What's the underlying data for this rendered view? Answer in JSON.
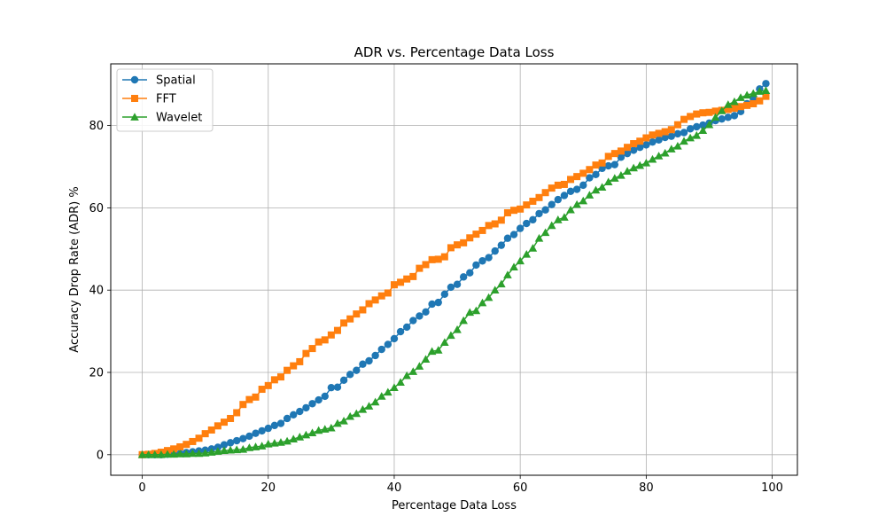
{
  "chart_data": {
    "type": "line",
    "title": "ADR vs. Percentage Data Loss",
    "xlabel": "Percentage Data Loss",
    "ylabel": "Accuracy Drop Rate (ADR) %",
    "xlim": [
      -5,
      104
    ],
    "ylim": [
      -5,
      95
    ],
    "xticks": [
      0,
      20,
      40,
      60,
      80,
      100
    ],
    "yticks": [
      0,
      20,
      40,
      60,
      80
    ],
    "xtick_labels": [
      "0",
      "20",
      "40",
      "60",
      "80",
      "100"
    ],
    "ytick_labels": [
      "0",
      "20",
      "40",
      "60",
      "80"
    ],
    "grid": true,
    "legend_position": "top-left",
    "series": [
      {
        "name": "Spatial",
        "color": "#1f77b4",
        "marker": "circle",
        "x": [
          0,
          1,
          2,
          3,
          4,
          5,
          6,
          7,
          8,
          9,
          10,
          11,
          12,
          13,
          14,
          15,
          16,
          17,
          18,
          19,
          20,
          21,
          22,
          23,
          24,
          25,
          26,
          27,
          28,
          29,
          30,
          31,
          32,
          33,
          34,
          35,
          36,
          37,
          38,
          39,
          40,
          41,
          42,
          43,
          44,
          45,
          46,
          47,
          48,
          49,
          50,
          51,
          52,
          53,
          54,
          55,
          56,
          57,
          58,
          59,
          60,
          61,
          62,
          63,
          64,
          65,
          66,
          67,
          68,
          69,
          70,
          71,
          72,
          73,
          74,
          75,
          76,
          77,
          78,
          79,
          80,
          81,
          82,
          83,
          84,
          85,
          86,
          87,
          88,
          89,
          90,
          91,
          92,
          93,
          94,
          95,
          96,
          97,
          98,
          99
        ],
        "y": [
          0,
          0,
          0,
          0,
          0.1,
          0.2,
          0.3,
          0.5,
          0.7,
          0.9,
          1.1,
          1.4,
          1.8,
          2.4,
          2.9,
          3.4,
          3.9,
          4.5,
          5.2,
          5.8,
          6.4,
          7.1,
          7.6,
          8.8,
          9.7,
          10.5,
          11.4,
          12.4,
          13.3,
          14.2,
          16.3,
          16.4,
          18.1,
          19.5,
          20.5,
          22.0,
          22.8,
          24.1,
          25.6,
          26.8,
          28.2,
          29.9,
          31.0,
          32.6,
          33.7,
          34.7,
          36.6,
          37.0,
          39.0,
          40.7,
          41.4,
          43.2,
          44.2,
          46.1,
          47.1,
          47.9,
          49.5,
          50.9,
          52.6,
          53.5,
          55.0,
          56.2,
          57.1,
          58.6,
          59.5,
          60.8,
          62.0,
          63.0,
          64.0,
          64.5,
          65.5,
          67.3,
          68.1,
          69.6,
          70.2,
          70.5,
          72.3,
          73.2,
          74.0,
          74.7,
          75.3,
          76.0,
          76.5,
          77.1,
          77.4,
          78.0,
          78.3,
          79.2,
          79.7,
          80.1,
          80.6,
          81.2,
          81.6,
          82.0,
          82.4,
          83.4,
          85.3,
          86.6,
          88.9,
          90.2
        ]
      },
      {
        "name": "FFT",
        "color": "#ff7f0e",
        "marker": "square",
        "x": [
          0,
          1,
          2,
          3,
          4,
          5,
          6,
          7,
          8,
          9,
          10,
          11,
          12,
          13,
          14,
          15,
          16,
          17,
          18,
          19,
          20,
          21,
          22,
          23,
          24,
          25,
          26,
          27,
          28,
          29,
          30,
          31,
          32,
          33,
          34,
          35,
          36,
          37,
          38,
          39,
          40,
          41,
          42,
          43,
          44,
          45,
          46,
          47,
          48,
          49,
          50,
          51,
          52,
          53,
          54,
          55,
          56,
          57,
          58,
          59,
          60,
          61,
          62,
          63,
          64,
          65,
          66,
          67,
          68,
          69,
          70,
          71,
          72,
          73,
          74,
          75,
          76,
          77,
          78,
          79,
          80,
          81,
          82,
          83,
          84,
          85,
          86,
          87,
          88,
          89,
          90,
          91,
          92,
          93,
          94,
          95,
          96,
          97,
          98,
          99
        ],
        "y": [
          0,
          0.1,
          0.3,
          0.6,
          1.0,
          1.4,
          1.9,
          2.5,
          3.2,
          4.0,
          5.1,
          6.0,
          7.0,
          7.9,
          8.8,
          10.2,
          12.2,
          13.4,
          14.0,
          15.9,
          16.8,
          18.2,
          18.9,
          20.5,
          21.6,
          22.6,
          24.6,
          25.8,
          27.4,
          27.9,
          29.1,
          30.2,
          32.0,
          33.0,
          34.2,
          35.2,
          36.7,
          37.6,
          38.6,
          39.3,
          41.3,
          41.9,
          42.7,
          43.3,
          45.3,
          46.2,
          47.4,
          47.5,
          48.1,
          50.3,
          51.0,
          51.5,
          52.7,
          53.6,
          54.5,
          55.7,
          56.1,
          57.0,
          58.8,
          59.4,
          59.7,
          60.7,
          61.6,
          62.5,
          63.7,
          64.8,
          65.5,
          65.7,
          66.9,
          67.6,
          68.4,
          69.3,
          70.4,
          70.9,
          72.5,
          73.2,
          73.8,
          74.7,
          75.6,
          76.2,
          77.0,
          77.7,
          78.1,
          78.5,
          79.0,
          80.2,
          81.5,
          82.2,
          82.8,
          83.1,
          83.2,
          83.5,
          83.7,
          83.9,
          84.2,
          84.6,
          84.9,
          85.3,
          86.0,
          87.1
        ]
      },
      {
        "name": "Wavelet",
        "color": "#2ca02c",
        "marker": "triangle",
        "x": [
          0,
          1,
          2,
          3,
          4,
          5,
          6,
          7,
          8,
          9,
          10,
          11,
          12,
          13,
          14,
          15,
          16,
          17,
          18,
          19,
          20,
          21,
          22,
          23,
          24,
          25,
          26,
          27,
          28,
          29,
          30,
          31,
          32,
          33,
          34,
          35,
          36,
          37,
          38,
          39,
          40,
          41,
          42,
          43,
          44,
          45,
          46,
          47,
          48,
          49,
          50,
          51,
          52,
          53,
          54,
          55,
          56,
          57,
          58,
          59,
          60,
          61,
          62,
          63,
          64,
          65,
          66,
          67,
          68,
          69,
          70,
          71,
          72,
          73,
          74,
          75,
          76,
          77,
          78,
          79,
          80,
          81,
          82,
          83,
          84,
          85,
          86,
          87,
          88,
          89,
          90,
          91,
          92,
          93,
          94,
          95,
          96,
          97,
          98,
          99
        ],
        "y": [
          0,
          0,
          0,
          0,
          0.1,
          0.1,
          0.2,
          0.2,
          0.3,
          0.3,
          0.4,
          0.6,
          0.8,
          1.0,
          1.1,
          1.2,
          1.3,
          1.7,
          1.9,
          2.1,
          2.6,
          2.8,
          3.0,
          3.3,
          3.8,
          4.3,
          4.8,
          5.3,
          5.9,
          6.2,
          6.5,
          7.6,
          8.2,
          9.3,
          10.0,
          11.0,
          11.8,
          12.8,
          14.2,
          15.2,
          16.3,
          17.6,
          19.2,
          20.2,
          21.5,
          23.2,
          25.1,
          25.4,
          27.3,
          29.0,
          30.4,
          32.6,
          34.6,
          35.0,
          36.9,
          38.2,
          40.0,
          41.5,
          43.7,
          45.6,
          47.1,
          48.7,
          50.2,
          52.6,
          54.0,
          55.7,
          57.1,
          57.7,
          59.5,
          60.8,
          61.7,
          63.1,
          64.3,
          65.0,
          66.3,
          67.2,
          67.9,
          68.9,
          69.7,
          70.3,
          70.9,
          71.8,
          72.6,
          73.3,
          74.3,
          75.0,
          76.2,
          77.0,
          77.6,
          78.8,
          80.2,
          82.0,
          83.6,
          85.1,
          85.8,
          86.8,
          87.4,
          87.8,
          88.3,
          88.5
        ]
      }
    ]
  }
}
